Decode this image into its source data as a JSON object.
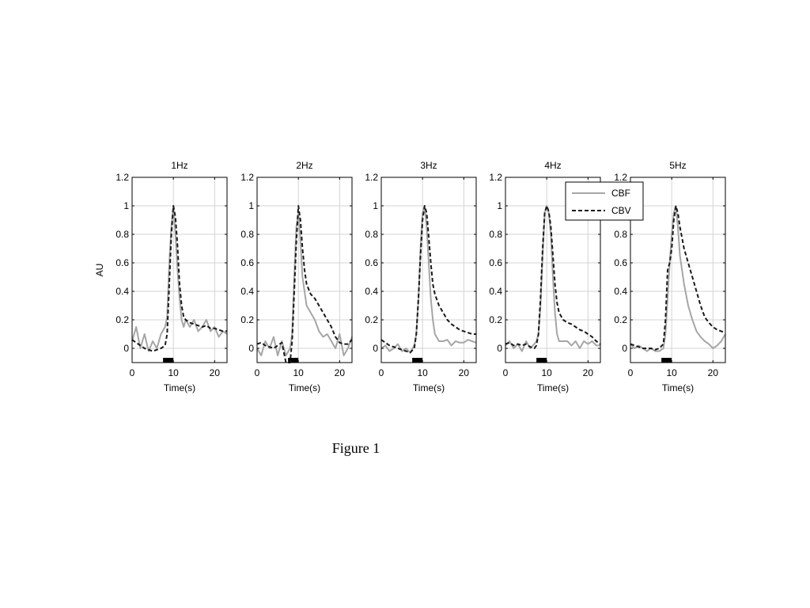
{
  "caption": "Figure 1",
  "chart_data": {
    "type": "line",
    "ylabel": "AU",
    "xlabel": "Time(s)",
    "xlim": [
      0,
      23
    ],
    "ylim": [
      -0.1,
      1.2
    ],
    "xticks": [
      0,
      10,
      20
    ],
    "yticks": [
      0,
      0.2,
      0.4,
      0.6,
      0.8,
      1,
      1.2
    ],
    "ytick_labels": [
      "0",
      "0.2",
      "0.4",
      "0.6",
      "0.8",
      "1",
      "1.2"
    ],
    "grid": true,
    "legend": {
      "position": "top-right",
      "entries": [
        "CBF",
        "CBV"
      ]
    },
    "series_colors": {
      "CBF": "#a6a6a6",
      "CBV": "#1a1a1a"
    },
    "stimulus": {
      "start": 7.5,
      "end": 10
    },
    "panels": [
      {
        "title": "1Hz",
        "series": [
          {
            "name": "CBF",
            "x": [
              0,
              1,
              2,
              3,
              4,
              5,
              6,
              7,
              8,
              8.5,
              9,
              9.5,
              10,
              10.5,
              11,
              11.5,
              12,
              12.5,
              13,
              14,
              15,
              16,
              17,
              18,
              19,
              20,
              21,
              22,
              23
            ],
            "y": [
              0.05,
              0.15,
              0.0,
              0.1,
              -0.02,
              0.05,
              0.0,
              0.1,
              0.15,
              0.22,
              0.6,
              0.85,
              1.0,
              0.8,
              0.55,
              0.35,
              0.2,
              0.15,
              0.2,
              0.15,
              0.2,
              0.12,
              0.15,
              0.2,
              0.12,
              0.15,
              0.08,
              0.12,
              0.1
            ]
          },
          {
            "name": "CBV",
            "x": [
              0,
              1,
              2,
              3,
              4,
              5,
              6,
              7,
              8,
              8.5,
              9,
              9.5,
              10,
              10.5,
              11,
              11.5,
              12,
              12.5,
              13,
              14,
              15,
              16,
              17,
              18,
              19,
              20,
              21,
              22,
              23
            ],
            "y": [
              0.06,
              0.04,
              0.02,
              0.0,
              -0.01,
              -0.02,
              -0.01,
              0.0,
              0.02,
              0.1,
              0.45,
              0.8,
              1.0,
              0.92,
              0.72,
              0.45,
              0.3,
              0.22,
              0.2,
              0.18,
              0.17,
              0.16,
              0.15,
              0.16,
              0.14,
              0.14,
              0.13,
              0.12,
              0.12
            ]
          }
        ]
      },
      {
        "title": "2Hz",
        "series": [
          {
            "name": "CBF",
            "x": [
              0,
              1,
              2,
              3,
              4,
              5,
              6,
              7,
              8,
              8.5,
              9,
              9.5,
              10,
              10.5,
              11,
              11.5,
              12,
              13,
              14,
              15,
              16,
              17,
              18,
              19,
              20,
              21,
              22,
              23
            ],
            "y": [
              0.0,
              -0.05,
              0.05,
              0.0,
              0.08,
              -0.05,
              0.05,
              -0.05,
              0.0,
              0.1,
              0.5,
              0.85,
              0.95,
              0.75,
              0.5,
              0.4,
              0.3,
              0.25,
              0.2,
              0.12,
              0.08,
              0.1,
              0.05,
              0.0,
              0.1,
              -0.05,
              0.0,
              0.08
            ]
          },
          {
            "name": "CBV",
            "x": [
              0,
              1,
              2,
              3,
              4,
              5,
              6,
              7,
              8,
              8.5,
              9,
              9.5,
              10,
              10.5,
              11,
              11.5,
              12,
              13,
              14,
              15,
              16,
              17,
              18,
              19,
              20,
              21,
              22,
              23
            ],
            "y": [
              0.03,
              0.04,
              0.02,
              0.01,
              0.0,
              0.02,
              0.04,
              -0.1,
              -0.1,
              0.05,
              0.4,
              0.75,
              1.0,
              0.9,
              0.7,
              0.55,
              0.45,
              0.38,
              0.35,
              0.3,
              0.25,
              0.2,
              0.15,
              0.08,
              0.04,
              0.03,
              0.03,
              0.06
            ]
          }
        ]
      },
      {
        "title": "3Hz",
        "series": [
          {
            "name": "CBF",
            "x": [
              0,
              1,
              2,
              3,
              4,
              5,
              6,
              7,
              8,
              8.5,
              9,
              9.5,
              10,
              10.5,
              11,
              11.5,
              12,
              12.5,
              13,
              14,
              15,
              16,
              17,
              18,
              19,
              20,
              21,
              22,
              23
            ],
            "y": [
              0.0,
              0.02,
              -0.02,
              0.0,
              0.03,
              -0.02,
              0.0,
              -0.03,
              0.02,
              0.1,
              0.35,
              0.7,
              0.95,
              1.0,
              0.85,
              0.6,
              0.35,
              0.2,
              0.1,
              0.05,
              0.05,
              0.06,
              0.02,
              0.05,
              0.04,
              0.04,
              0.06,
              0.05,
              0.04
            ]
          },
          {
            "name": "CBV",
            "x": [
              0,
              1,
              2,
              3,
              4,
              5,
              6,
              7,
              8,
              8.5,
              9,
              9.5,
              10,
              10.5,
              11,
              11.5,
              12,
              12.5,
              13,
              14,
              15,
              16,
              17,
              18,
              19,
              20,
              21,
              22,
              23
            ],
            "y": [
              0.06,
              0.04,
              0.02,
              0.01,
              0.0,
              -0.01,
              -0.02,
              -0.03,
              0.0,
              0.1,
              0.35,
              0.65,
              0.9,
              1.0,
              0.95,
              0.78,
              0.6,
              0.45,
              0.38,
              0.3,
              0.25,
              0.2,
              0.17,
              0.15,
              0.13,
              0.12,
              0.11,
              0.1,
              0.1
            ]
          }
        ]
      },
      {
        "title": "4Hz",
        "series": [
          {
            "name": "CBF",
            "x": [
              0,
              1,
              2,
              3,
              4,
              5,
              6,
              7,
              7.5,
              8,
              8.5,
              9,
              9.5,
              10,
              10.5,
              11,
              11.5,
              12,
              12.5,
              13,
              14,
              15,
              16,
              17,
              18,
              19,
              20,
              21,
              22,
              23
            ],
            "y": [
              0.02,
              0.05,
              0.0,
              0.03,
              -0.02,
              0.05,
              0.0,
              0.03,
              0.05,
              0.1,
              0.3,
              0.65,
              0.95,
              1.0,
              0.95,
              0.8,
              0.5,
              0.25,
              0.1,
              0.05,
              0.05,
              0.05,
              0.02,
              0.05,
              0.0,
              0.05,
              0.03,
              0.05,
              0.02,
              0.02
            ]
          },
          {
            "name": "CBV",
            "x": [
              0,
              1,
              2,
              3,
              4,
              5,
              6,
              7,
              7.5,
              8,
              8.5,
              9,
              9.5,
              10,
              10.5,
              11,
              11.5,
              12,
              12.5,
              13,
              14,
              15,
              16,
              17,
              18,
              19,
              20,
              21,
              22,
              23
            ],
            "y": [
              0.03,
              0.04,
              0.02,
              0.03,
              0.02,
              0.03,
              0.01,
              0.0,
              0.02,
              0.1,
              0.35,
              0.7,
              0.95,
              1.0,
              0.96,
              0.85,
              0.65,
              0.45,
              0.32,
              0.25,
              0.2,
              0.18,
              0.17,
              0.15,
              0.13,
              0.12,
              0.1,
              0.08,
              0.05,
              0.03
            ]
          }
        ]
      },
      {
        "title": "5Hz",
        "series": [
          {
            "name": "CBF",
            "x": [
              0,
              1,
              2,
              3,
              4,
              5,
              6,
              7,
              8,
              8.5,
              9,
              9.5,
              10,
              10.5,
              11,
              11.5,
              12,
              13,
              14,
              15,
              16,
              17,
              18,
              19,
              20,
              21,
              22,
              23
            ],
            "y": [
              0.03,
              0.0,
              0.02,
              0.0,
              -0.02,
              0.0,
              -0.02,
              -0.02,
              0.0,
              0.1,
              0.35,
              0.6,
              0.8,
              0.95,
              1.0,
              0.85,
              0.65,
              0.45,
              0.3,
              0.2,
              0.12,
              0.08,
              0.05,
              0.03,
              0.0,
              0.02,
              0.05,
              0.1
            ]
          },
          {
            "name": "CBV",
            "x": [
              0,
              1,
              2,
              3,
              4,
              5,
              6,
              7,
              8,
              8.5,
              9,
              9.5,
              10,
              10.5,
              11,
              11.5,
              12,
              13,
              14,
              15,
              16,
              17,
              18,
              19,
              20,
              21,
              22,
              23
            ],
            "y": [
              0.03,
              0.02,
              0.01,
              0.0,
              0.0,
              0.0,
              -0.01,
              0.0,
              0.03,
              0.2,
              0.55,
              0.6,
              0.7,
              0.9,
              1.0,
              0.95,
              0.85,
              0.7,
              0.6,
              0.5,
              0.4,
              0.3,
              0.22,
              0.18,
              0.15,
              0.13,
              0.12,
              0.11
            ]
          }
        ]
      }
    ]
  }
}
